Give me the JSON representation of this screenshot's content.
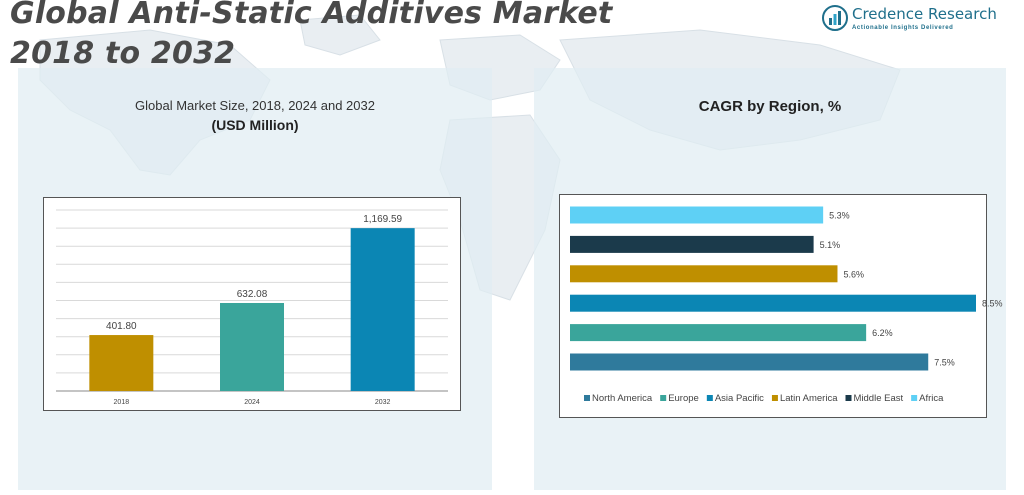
{
  "header": {
    "title_line1": "Global Anti-Static Additives Market",
    "title_line2": "2018 to 2032"
  },
  "brand": {
    "name": "Credence Research",
    "tagline": "Actionable Insights Delivered"
  },
  "left_panel": {
    "subtitle": "Global Market Size, 2018, 2024 and 2032",
    "unit": "(USD Million)"
  },
  "right_panel": {
    "title": "CAGR by Region, %"
  },
  "colors": {
    "bar_2018": "#bf8f00",
    "bar_2024": "#3aa59b",
    "bar_2032": "#0b86b4",
    "north_america": "#2f7a9c",
    "europe": "#3aa59b",
    "asia_pacific": "#0b86b4",
    "latin_america": "#bf8f00",
    "middle_east": "#1b3a4b",
    "africa": "#5ed0f5"
  },
  "chart_data": [
    {
      "type": "bar",
      "title": "Global Market Size, 2018, 2024 and 2032",
      "ylabel": "(USD Million)",
      "categories": [
        "2018",
        "2024",
        "2032"
      ],
      "values": [
        401.8,
        632.08,
        1169.59
      ],
      "value_labels": [
        "401.80",
        "632.08",
        "1,169.59"
      ],
      "ylim": [
        0,
        1300
      ],
      "grid": true
    },
    {
      "type": "bar",
      "orientation": "horizontal",
      "title": "CAGR by Region, %",
      "categories": [
        "North America",
        "Europe",
        "Asia Pacific",
        "Latin America",
        "Middle East",
        "Africa"
      ],
      "values": [
        7.5,
        6.2,
        8.5,
        5.6,
        5.1,
        5.3
      ],
      "value_labels": [
        "7.5%",
        "6.2%",
        "8.5%",
        "5.6%",
        "5.1%",
        "5.3%"
      ],
      "legend": [
        "North America",
        "Europe",
        "Asia Pacific",
        "Latin America",
        "Middle East",
        "Africa"
      ],
      "legend_position": "bottom",
      "xlim": [
        0,
        8.5
      ],
      "grid": false
    }
  ]
}
